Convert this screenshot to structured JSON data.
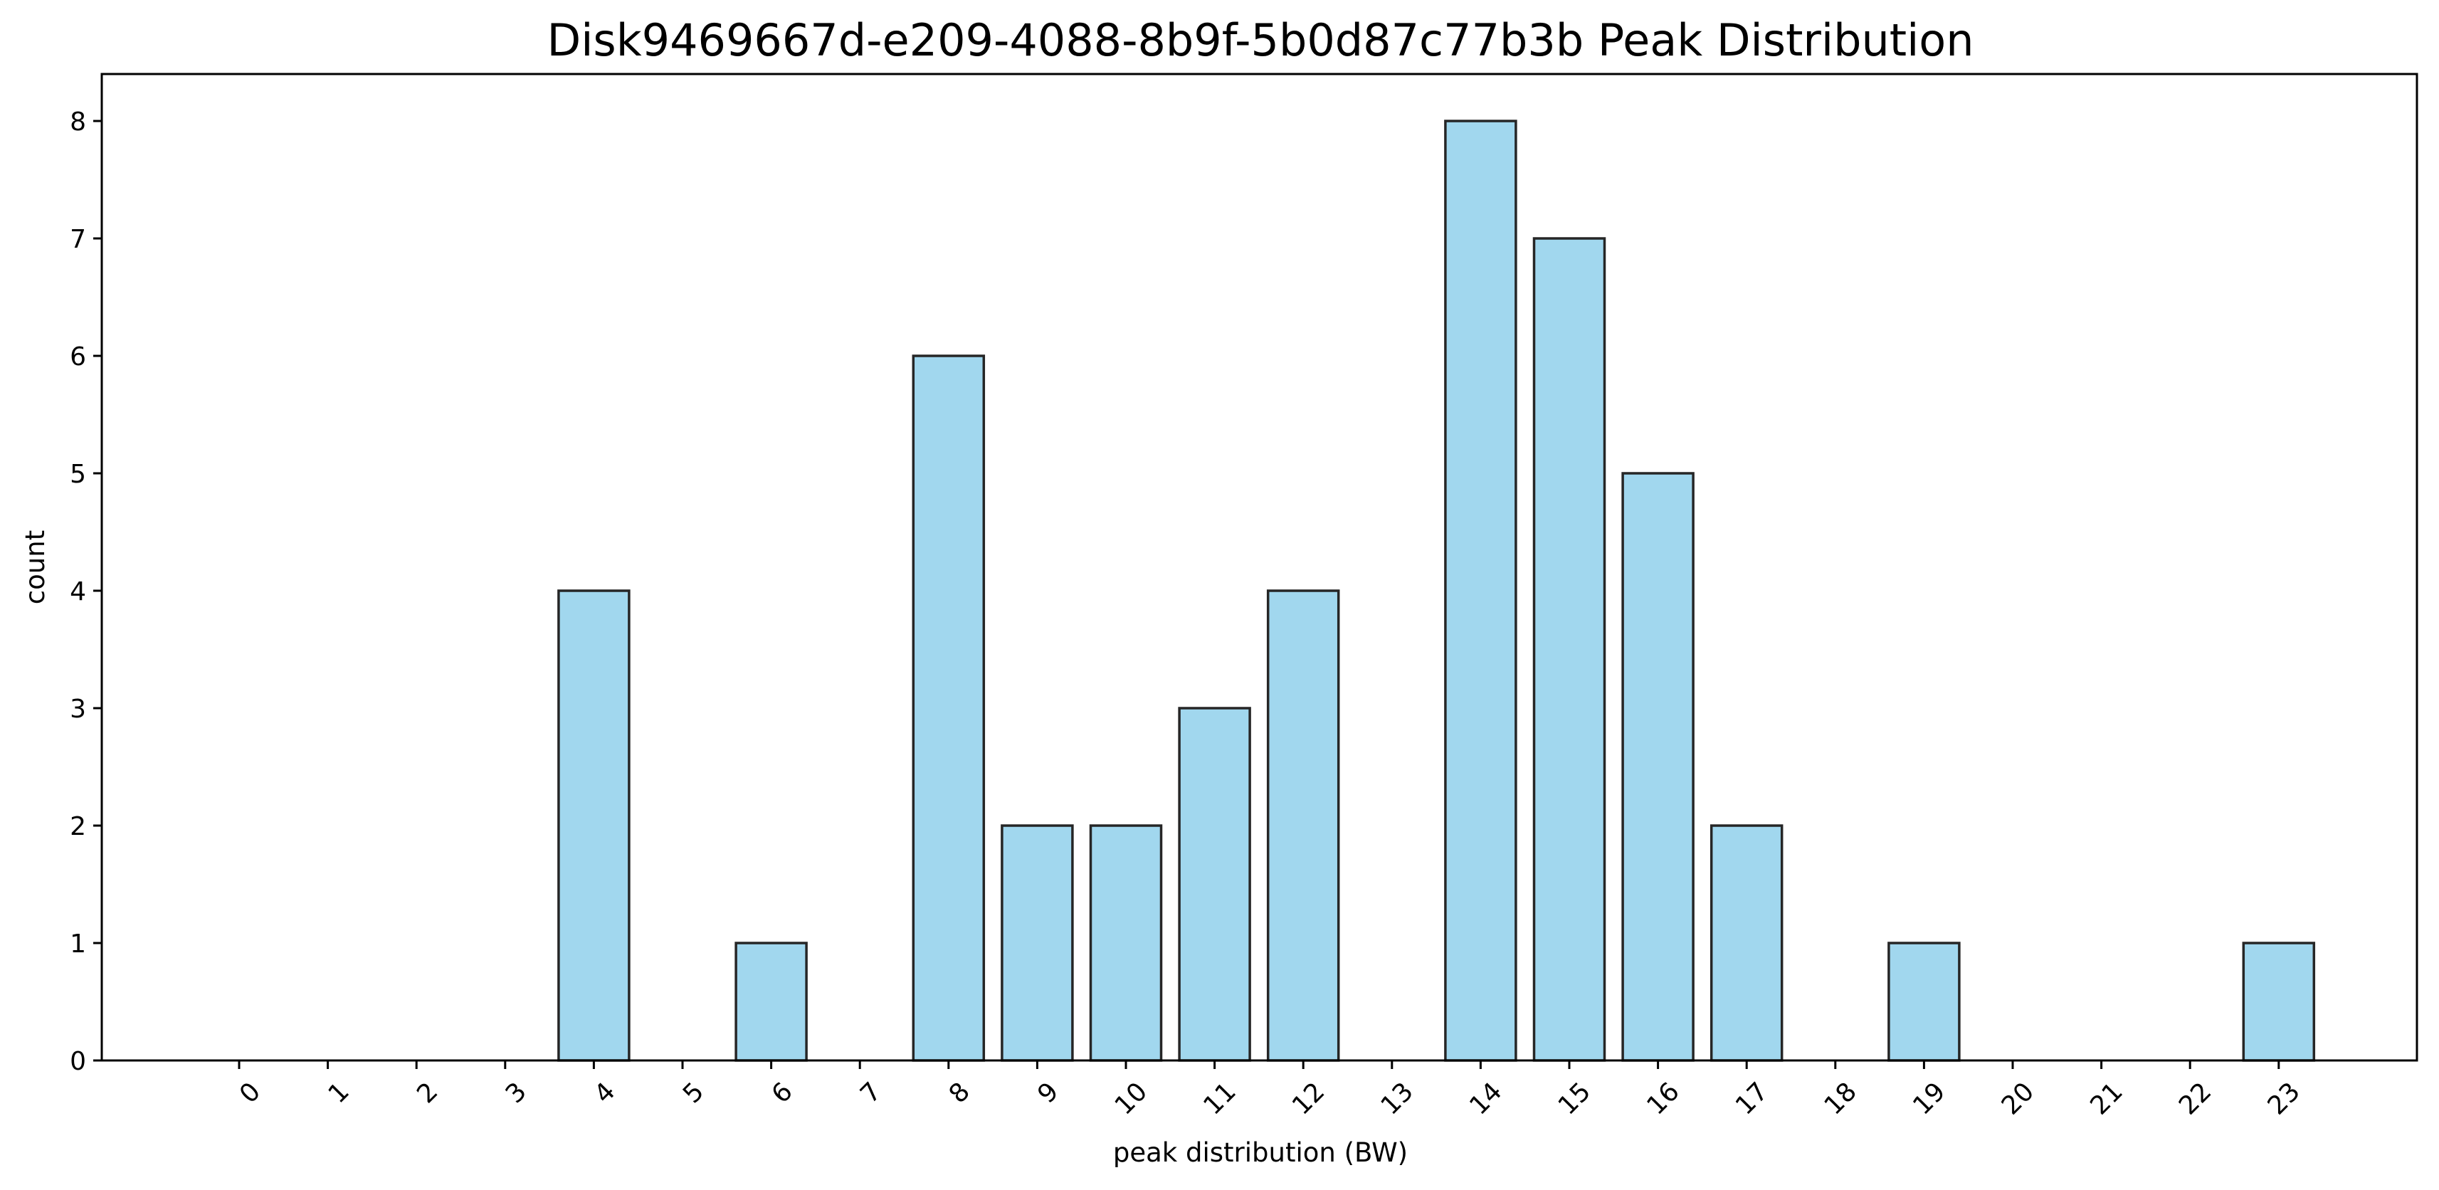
{
  "chart_data": {
    "type": "bar",
    "title": "Disk9469667d-e209-4088-8b9f-5b0d87c77b3b Peak Distribution",
    "xlabel": "peak distribution (BW)",
    "ylabel": "count",
    "categories": [
      "0",
      "1",
      "2",
      "3",
      "4",
      "5",
      "6",
      "7",
      "8",
      "9",
      "10",
      "11",
      "12",
      "13",
      "14",
      "15",
      "16",
      "17",
      "18",
      "19",
      "20",
      "21",
      "22",
      "23"
    ],
    "values": [
      0,
      0,
      0,
      0,
      4,
      0,
      1,
      0,
      6,
      2,
      2,
      3,
      4,
      0,
      8,
      7,
      5,
      2,
      0,
      1,
      0,
      0,
      0,
      1
    ],
    "ylim": [
      0,
      8.4
    ],
    "yticks": [
      0,
      1,
      2,
      3,
      4,
      5,
      6,
      7,
      8
    ],
    "grid": false,
    "legend": "none",
    "colors": {
      "bar_fill": "#a1d7ee",
      "bar_edge": "#262626"
    }
  }
}
